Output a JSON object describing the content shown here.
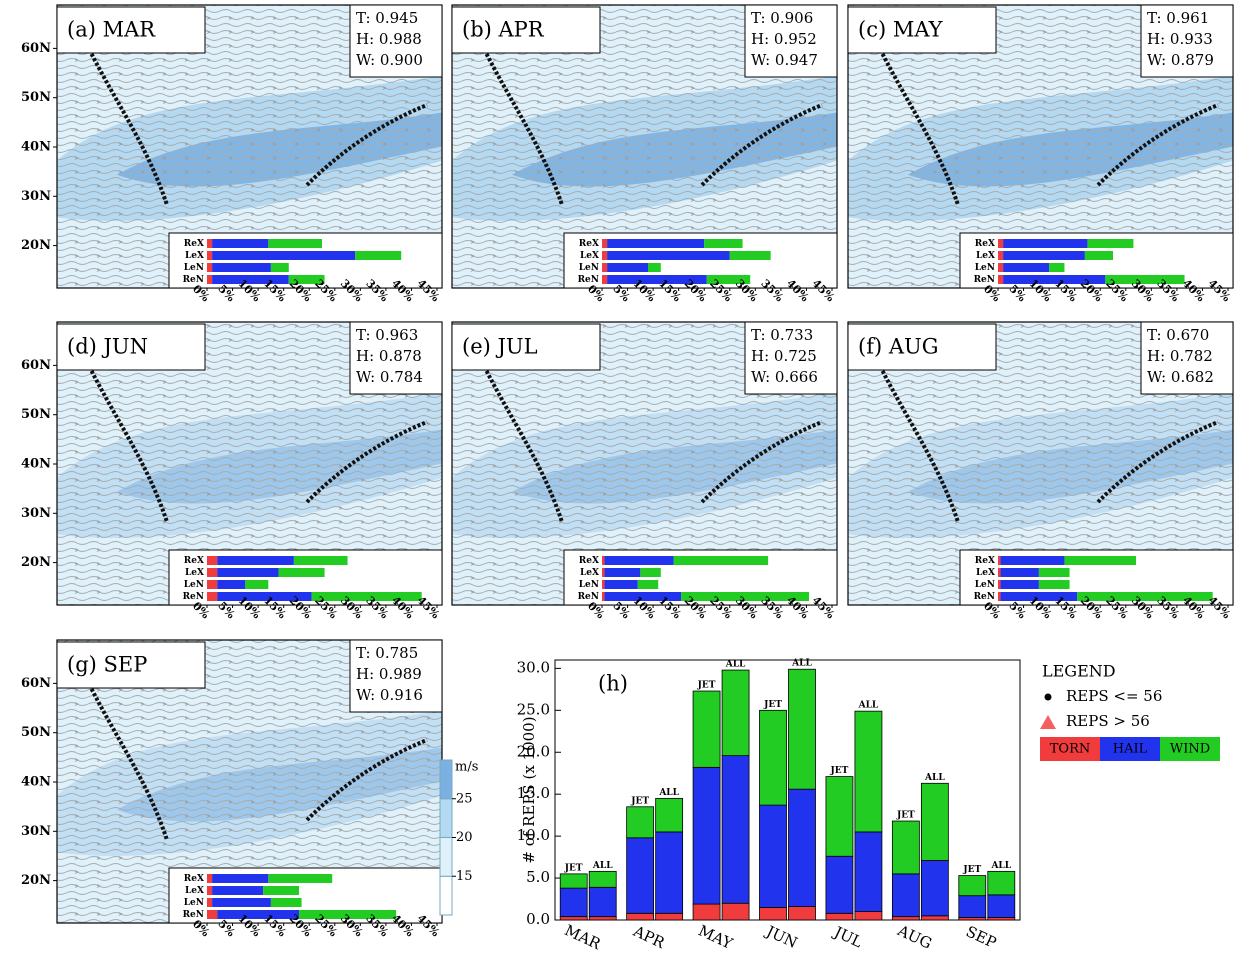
{
  "lat_axis": {
    "lim": [
      11.4,
      68.8
    ],
    "ticks": [
      {
        "value": 20,
        "label": "20N"
      },
      {
        "value": 30,
        "label": "30N"
      },
      {
        "value": 40,
        "label": "40N"
      },
      {
        "value": 50,
        "label": "50N"
      },
      {
        "value": 60,
        "label": "60N"
      }
    ]
  },
  "colorbar": {
    "label": "m/s",
    "lim": [
      10,
      30
    ],
    "ticks": [
      15,
      20,
      25
    ],
    "colors": [
      "#ffffff",
      "#dff1fa",
      "#b4d9f2",
      "#7bb0e2"
    ]
  },
  "legend": {
    "title": "LEGEND",
    "entries": [
      "REPS <= 56",
      "REPS > 56"
    ]
  },
  "chart_data": [
    {
      "type": "hbar",
      "title": "(a) MAR",
      "annotations": [
        "T: 0.945",
        "H: 0.988",
        "W: 0.900"
      ],
      "categories": [
        "ReX",
        "LeX",
        "LeN",
        "ReN"
      ],
      "series": [
        {
          "color": "#f03c3c",
          "values": [
            1,
            1,
            1,
            1
          ]
        },
        {
          "color": "#2233ee",
          "values": [
            11,
            28,
            11.5,
            15
          ]
        },
        {
          "color": "#22cc22",
          "values": [
            10.5,
            9,
            3.5,
            7
          ]
        }
      ],
      "xlim": [
        0,
        45
      ],
      "xticks": [
        {
          "value": 0,
          "label": "0%"
        },
        {
          "value": 5,
          "label": "5%"
        },
        {
          "value": 10,
          "label": "10%"
        },
        {
          "value": 15,
          "label": "15%"
        },
        {
          "value": 20,
          "label": "20%"
        },
        {
          "value": 25,
          "label": "25%"
        },
        {
          "value": 30,
          "label": "30%"
        },
        {
          "value": 35,
          "label": "35%"
        },
        {
          "value": 40,
          "label": "40%"
        },
        {
          "value": 45,
          "label": "45%"
        }
      ]
    },
    {
      "type": "hbar",
      "title": "(b) APR",
      "annotations": [
        "T: 0.906",
        "H: 0.952",
        "W: 0.947"
      ],
      "categories": [
        "ReX",
        "LeX",
        "LeN",
        "ReN"
      ],
      "series": [
        {
          "color": "#f03c3c",
          "values": [
            1,
            1,
            1,
            1
          ]
        },
        {
          "color": "#2233ee",
          "values": [
            19,
            24,
            8,
            19.5
          ]
        },
        {
          "color": "#22cc22",
          "values": [
            7.5,
            8,
            2.5,
            8.5
          ]
        }
      ],
      "xlim": [
        0,
        45
      ],
      "xticks": [
        {
          "value": 0,
          "label": "0%"
        },
        {
          "value": 5,
          "label": "5%"
        },
        {
          "value": 10,
          "label": "10%"
        },
        {
          "value": 15,
          "label": "15%"
        },
        {
          "value": 20,
          "label": "20%"
        },
        {
          "value": 25,
          "label": "25%"
        },
        {
          "value": 30,
          "label": "30%"
        },
        {
          "value": 35,
          "label": "35%"
        },
        {
          "value": 40,
          "label": "40%"
        },
        {
          "value": 45,
          "label": "45%"
        }
      ]
    },
    {
      "type": "hbar",
      "title": "(c) MAY",
      "annotations": [
        "T: 0.961",
        "H: 0.933",
        "W: 0.879"
      ],
      "categories": [
        "ReX",
        "LeX",
        "LeN",
        "ReN"
      ],
      "series": [
        {
          "color": "#f03c3c",
          "values": [
            1,
            1,
            1,
            1
          ]
        },
        {
          "color": "#2233ee",
          "values": [
            16.5,
            16,
            9,
            20
          ]
        },
        {
          "color": "#22cc22",
          "values": [
            9,
            5.5,
            3,
            15.5
          ]
        }
      ],
      "xlim": [
        0,
        45
      ],
      "xticks": [
        {
          "value": 0,
          "label": "0%"
        },
        {
          "value": 5,
          "label": "5%"
        },
        {
          "value": 10,
          "label": "10%"
        },
        {
          "value": 15,
          "label": "15%"
        },
        {
          "value": 20,
          "label": "20%"
        },
        {
          "value": 25,
          "label": "25%"
        },
        {
          "value": 30,
          "label": "30%"
        },
        {
          "value": 35,
          "label": "35%"
        },
        {
          "value": 40,
          "label": "40%"
        },
        {
          "value": 45,
          "label": "45%"
        }
      ]
    },
    {
      "type": "hbar",
      "title": "(d) JUN",
      "annotations": [
        "T: 0.963",
        "H: 0.878",
        "W: 0.784"
      ],
      "categories": [
        "ReX",
        "LeX",
        "LeN",
        "ReN"
      ],
      "series": [
        {
          "color": "#f03c3c",
          "values": [
            2,
            2,
            2,
            2
          ]
        },
        {
          "color": "#2233ee",
          "values": [
            15,
            12,
            5.5,
            18.5
          ]
        },
        {
          "color": "#22cc22",
          "values": [
            10.5,
            9,
            4.5,
            21.5
          ]
        }
      ],
      "xlim": [
        0,
        45
      ],
      "xticks": [
        {
          "value": 0,
          "label": "0%"
        },
        {
          "value": 5,
          "label": "5%"
        },
        {
          "value": 10,
          "label": "10%"
        },
        {
          "value": 15,
          "label": "15%"
        },
        {
          "value": 20,
          "label": "20%"
        },
        {
          "value": 25,
          "label": "25%"
        },
        {
          "value": 30,
          "label": "30%"
        },
        {
          "value": 35,
          "label": "35%"
        },
        {
          "value": 40,
          "label": "40%"
        },
        {
          "value": 45,
          "label": "45%"
        }
      ]
    },
    {
      "type": "hbar",
      "title": "(e) JUL",
      "annotations": [
        "T: 0.733",
        "H: 0.725",
        "W: 0.666"
      ],
      "categories": [
        "ReX",
        "LeX",
        "LeN",
        "ReN"
      ],
      "series": [
        {
          "color": "#f03c3c",
          "values": [
            0.5,
            0.5,
            0.5,
            0.5
          ]
        },
        {
          "color": "#2233ee",
          "values": [
            13.5,
            7,
            6.5,
            15
          ]
        },
        {
          "color": "#22cc22",
          "values": [
            18.5,
            4,
            4,
            25
          ]
        }
      ],
      "xlim": [
        0,
        45
      ],
      "xticks": [
        {
          "value": 0,
          "label": "0%"
        },
        {
          "value": 5,
          "label": "5%"
        },
        {
          "value": 10,
          "label": "10%"
        },
        {
          "value": 15,
          "label": "15%"
        },
        {
          "value": 20,
          "label": "20%"
        },
        {
          "value": 25,
          "label": "25%"
        },
        {
          "value": 30,
          "label": "30%"
        },
        {
          "value": 35,
          "label": "35%"
        },
        {
          "value": 40,
          "label": "40%"
        },
        {
          "value": 45,
          "label": "45%"
        }
      ]
    },
    {
      "type": "hbar",
      "title": "(f) AUG",
      "annotations": [
        "T: 0.670",
        "H: 0.782",
        "W: 0.682"
      ],
      "categories": [
        "ReX",
        "LeX",
        "LeN",
        "ReN"
      ],
      "series": [
        {
          "color": "#f03c3c",
          "values": [
            0.5,
            0.5,
            0.5,
            0.5
          ]
        },
        {
          "color": "#2233ee",
          "values": [
            12.5,
            7.5,
            7.5,
            15
          ]
        },
        {
          "color": "#22cc22",
          "values": [
            14,
            6,
            6,
            26.5
          ]
        }
      ],
      "xlim": [
        0,
        45
      ],
      "xticks": [
        {
          "value": 0,
          "label": "0%"
        },
        {
          "value": 5,
          "label": "5%"
        },
        {
          "value": 10,
          "label": "10%"
        },
        {
          "value": 15,
          "label": "15%"
        },
        {
          "value": 20,
          "label": "20%"
        },
        {
          "value": 25,
          "label": "25%"
        },
        {
          "value": 30,
          "label": "30%"
        },
        {
          "value": 35,
          "label": "35%"
        },
        {
          "value": 40,
          "label": "40%"
        },
        {
          "value": 45,
          "label": "45%"
        }
      ]
    },
    {
      "type": "hbar",
      "title": "(g) SEP",
      "annotations": [
        "T: 0.785",
        "H: 0.989",
        "W: 0.916"
      ],
      "categories": [
        "ReX",
        "LeX",
        "LeN",
        "ReN"
      ],
      "series": [
        {
          "color": "#f03c3c",
          "values": [
            1,
            1,
            1,
            2
          ]
        },
        {
          "color": "#2233ee",
          "values": [
            11,
            10,
            11.5,
            16
          ]
        },
        {
          "color": "#22cc22",
          "values": [
            12.5,
            7,
            6,
            19
          ]
        }
      ],
      "xlim": [
        0,
        45
      ],
      "xticks": [
        {
          "value": 0,
          "label": "0%"
        },
        {
          "value": 5,
          "label": "5%"
        },
        {
          "value": 10,
          "label": "10%"
        },
        {
          "value": 15,
          "label": "15%"
        },
        {
          "value": 20,
          "label": "20%"
        },
        {
          "value": 25,
          "label": "25%"
        },
        {
          "value": 30,
          "label": "30%"
        },
        {
          "value": 35,
          "label": "35%"
        },
        {
          "value": 40,
          "label": "40%"
        },
        {
          "value": 45,
          "label": "45%"
        }
      ]
    },
    {
      "type": "pairbar",
      "title": "(h)",
      "ylabel": "# of REPS (x 1000)",
      "categories": [
        "MAR",
        "APR",
        "MAY",
        "JUN",
        "JUL",
        "AUG",
        "SEP"
      ],
      "stack_labels": [
        "JET",
        "ALL"
      ],
      "series": [
        {
          "name": "TORN",
          "color": "#f03c3c",
          "values": [
            [
              0.4,
              0.4
            ],
            [
              0.8,
              0.8
            ],
            [
              1.9,
              2.0
            ],
            [
              1.5,
              1.6
            ],
            [
              0.8,
              1.0
            ],
            [
              0.4,
              0.5
            ],
            [
              0.3,
              0.3
            ]
          ]
        },
        {
          "name": "HAIL",
          "color": "#2233ee",
          "values": [
            [
              3.4,
              3.5
            ],
            [
              9.0,
              9.7
            ],
            [
              16.3,
              17.6
            ],
            [
              12.2,
              14.0
            ],
            [
              6.8,
              9.5
            ],
            [
              5.1,
              6.6
            ],
            [
              2.6,
              2.7
            ]
          ]
        },
        {
          "name": "WIND",
          "color": "#22cc22",
          "values": [
            [
              1.7,
              1.9
            ],
            [
              3.7,
              4.0
            ],
            [
              9.1,
              10.2
            ],
            [
              11.3,
              14.3
            ],
            [
              9.5,
              14.4
            ],
            [
              6.3,
              9.2
            ],
            [
              2.4,
              2.8
            ]
          ]
        }
      ],
      "ylim": [
        0,
        31
      ],
      "yticks": [
        {
          "value": 0,
          "label": "0.0"
        },
        {
          "value": 5,
          "label": "5.0"
        },
        {
          "value": 10,
          "label": "10.0"
        },
        {
          "value": 15,
          "label": "15.0"
        },
        {
          "value": 20,
          "label": "20.0"
        },
        {
          "value": 25,
          "label": "25.0"
        },
        {
          "value": 30,
          "label": "30.0"
        }
      ]
    }
  ]
}
